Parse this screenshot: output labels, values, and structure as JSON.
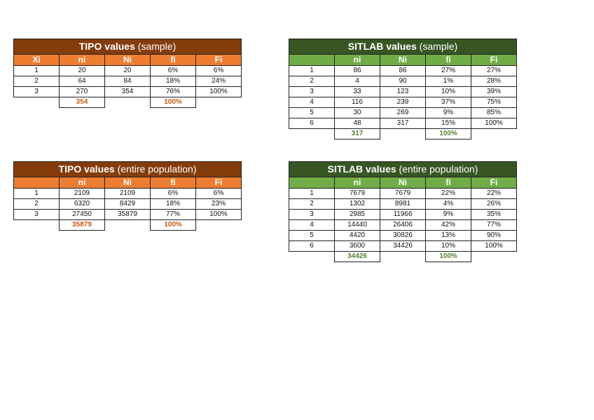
{
  "tables": [
    {
      "id": "tipo-sample",
      "title_main": "TIPO values",
      "title_sub": " (sample)",
      "headers": [
        "Xi",
        "ni",
        "Ni",
        "fi",
        "Fi"
      ],
      "rows": [
        [
          "1",
          "20",
          "20",
          "6%",
          "6%"
        ],
        [
          "2",
          "64",
          "84",
          "18%",
          "24%"
        ],
        [
          "3",
          "270",
          "354",
          "76%",
          "100%"
        ]
      ],
      "total_ni": "354",
      "total_fi": "100%"
    },
    {
      "id": "sitlab-sample",
      "title_main": "SITLAB values",
      "title_sub": " (sample)",
      "headers": [
        "",
        "ni",
        "Ni",
        "fi",
        "Fi"
      ],
      "rows": [
        [
          "1",
          "86",
          "86",
          "27%",
          "27%"
        ],
        [
          "2",
          "4",
          "90",
          "1%",
          "28%"
        ],
        [
          "3",
          "33",
          "123",
          "10%",
          "39%"
        ],
        [
          "4",
          "116",
          "239",
          "37%",
          "75%"
        ],
        [
          "5",
          "30",
          "269",
          "9%",
          "85%"
        ],
        [
          "6",
          "48",
          "317",
          "15%",
          "100%"
        ]
      ],
      "total_ni": "317",
      "total_fi": "100%"
    },
    {
      "id": "tipo-population",
      "title_main": "TIPO values",
      "title_sub": " (entire population)",
      "headers": [
        "",
        "ni",
        "Ni",
        "fi",
        "Fi"
      ],
      "rows": [
        [
          "1",
          "2109",
          "2109",
          "6%",
          "6%"
        ],
        [
          "2",
          "6320",
          "8429",
          "18%",
          "23%"
        ],
        [
          "3",
          "27450",
          "35879",
          "77%",
          "100%"
        ]
      ],
      "total_ni": "35879",
      "total_fi": "100%"
    },
    {
      "id": "sitlab-population",
      "title_main": "SITLAB values",
      "title_sub": " (entire population)",
      "headers": [
        "",
        "ni",
        "Ni",
        "fi",
        "Fi"
      ],
      "rows": [
        [
          "1",
          "7679",
          "7679",
          "22%",
          "22%"
        ],
        [
          "2",
          "1302",
          "8981",
          "4%",
          "26%"
        ],
        [
          "3",
          "2985",
          "11966",
          "9%",
          "35%"
        ],
        [
          "4",
          "14440",
          "26406",
          "42%",
          "77%"
        ],
        [
          "5",
          "4420",
          "30826",
          "13%",
          "90%"
        ],
        [
          "6",
          "3600",
          "34426",
          "10%",
          "100%"
        ]
      ],
      "total_ni": "34426",
      "total_fi": "100%"
    }
  ]
}
